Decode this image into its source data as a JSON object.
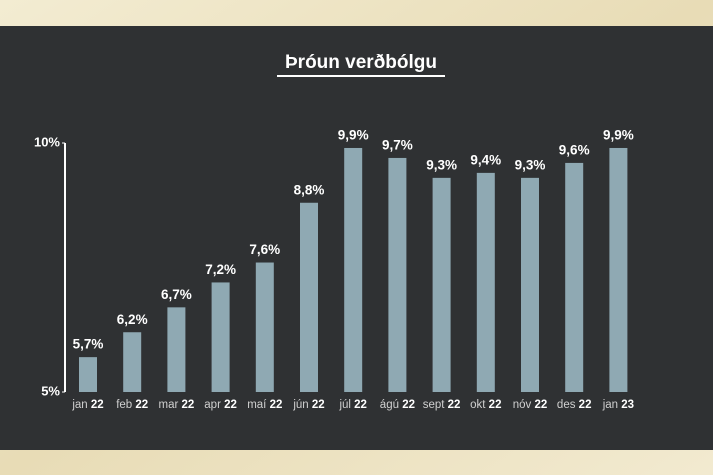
{
  "chart_data": {
    "type": "bar",
    "title": "Þróun verðbólgu",
    "categories": [
      "jan 22",
      "feb 22",
      "mar 22",
      "apr 22",
      "maí 22",
      "jún 22",
      "júl 22",
      "ágú 22",
      "sept 22",
      "okt 22",
      "nóv 22",
      "des 22",
      "jan 23"
    ],
    "values": [
      5.7,
      6.2,
      6.7,
      7.2,
      7.6,
      8.8,
      9.9,
      9.7,
      9.3,
      9.4,
      9.3,
      9.6,
      9.9
    ],
    "value_labels": [
      "5,7%",
      "6,2%",
      "6,7%",
      "7,2%",
      "7,6%",
      "8,8%",
      "9,9%",
      "9,7%",
      "9,3%",
      "9,4%",
      "9,3%",
      "9,6%",
      "9,9%"
    ],
    "color": "#8fa9b3",
    "ylim": [
      5,
      10
    ],
    "yticks": [
      {
        "value": 5,
        "label": "5%"
      },
      {
        "value": 10,
        "label": "10%"
      }
    ],
    "grid": false
  }
}
